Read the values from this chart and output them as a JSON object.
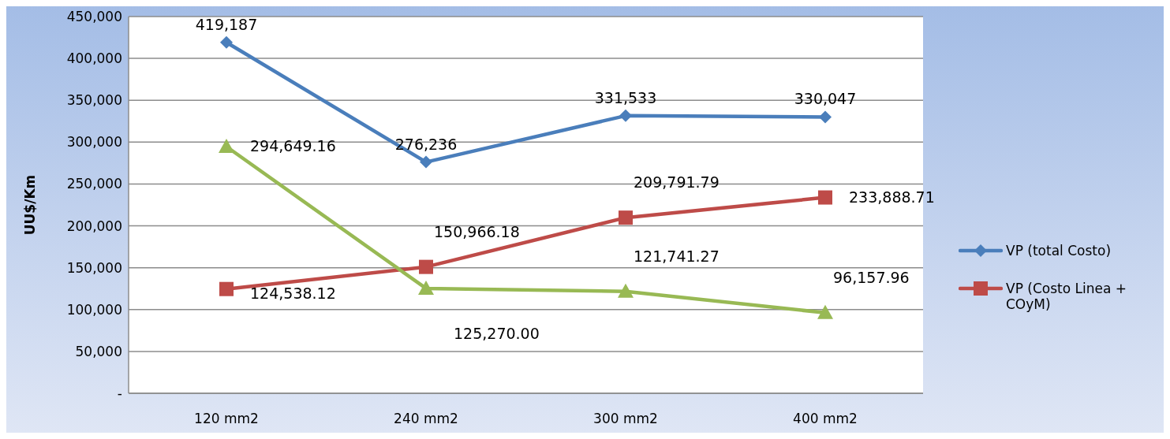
{
  "chart_data": {
    "type": "line",
    "ylabel": "UU$/Km",
    "categories": [
      "120 mm2",
      "240 mm2",
      "300 mm2",
      "400 mm2"
    ],
    "series": [
      {
        "name": "VP (total Costo)",
        "color": "#4a7ebb",
        "marker": "diamond",
        "values": [
          419187,
          276236,
          331533,
          330047
        ],
        "value_labels": [
          "419,187",
          "276,236",
          "331,533",
          "330,047"
        ]
      },
      {
        "name": "VP (Costo Linea + COyM)",
        "color": "#be4b48",
        "marker": "square",
        "values": [
          124538.12,
          150966.18,
          209791.79,
          233888.71
        ],
        "value_labels": [
          "124,538.12",
          "150,966.18",
          "209,791.79",
          "233,888.71"
        ]
      },
      {
        "color": "#98b954",
        "marker": "triangle",
        "values": [
          294649.16,
          125270.0,
          121741.27,
          96157.96
        ],
        "value_labels": [
          "294,649.16",
          "125,270.00",
          "121,741.27",
          "96,157.96"
        ]
      }
    ],
    "ylim": [
      0,
      450000
    ],
    "yticks": [
      {
        "value": 0,
        "label": "-"
      },
      {
        "value": 50000,
        "label": "50,000"
      },
      {
        "value": 100000,
        "label": "100,000"
      },
      {
        "value": 150000,
        "label": "150,000"
      },
      {
        "value": 200000,
        "label": "200,000"
      },
      {
        "value": 250000,
        "label": "250,000"
      },
      {
        "value": 300000,
        "label": "300,000"
      },
      {
        "value": 350000,
        "label": "350,000"
      },
      {
        "value": 400000,
        "label": "400,000"
      },
      {
        "value": 450000,
        "label": "450,000"
      }
    ],
    "grid": "y",
    "legend": "right",
    "line_style": "solid"
  }
}
